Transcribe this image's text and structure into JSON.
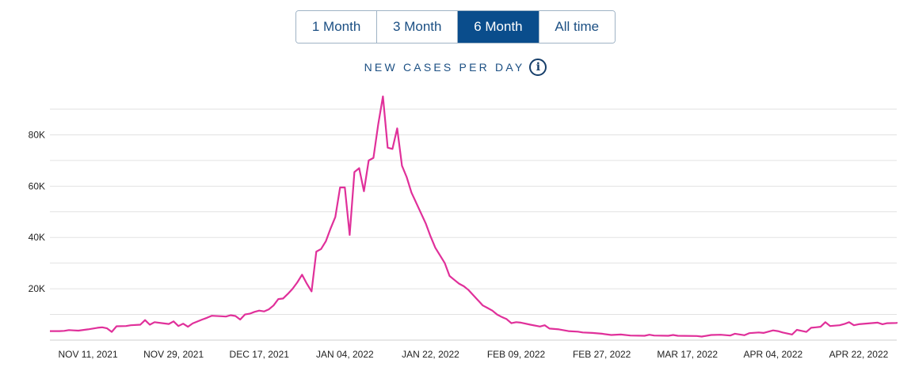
{
  "range_selector": {
    "buttons": [
      {
        "label": "1 Month",
        "active": false
      },
      {
        "label": "3 Month",
        "active": false
      },
      {
        "label": "6 Month",
        "active": true
      },
      {
        "label": "All time",
        "active": false
      }
    ]
  },
  "icons": {
    "info": "info-icon"
  },
  "colors": {
    "line": "#e0309a",
    "accent": "#0a4d8c",
    "text": "#1b4f83",
    "grid": "#e2e2e2"
  },
  "chart_data": {
    "type": "line",
    "title": "NEW CASES PER DAY",
    "xlabel": "",
    "ylabel": "",
    "x_ticks": [
      {
        "date": "2021-11-11",
        "label": "NOV 11, 2021"
      },
      {
        "date": "2021-11-29",
        "label": "NOV 29, 2021"
      },
      {
        "date": "2021-12-17",
        "label": "DEC 17, 2021"
      },
      {
        "date": "2022-01-04",
        "label": "JAN 04, 2022"
      },
      {
        "date": "2022-01-22",
        "label": "JAN 22, 2022"
      },
      {
        "date": "2022-02-09",
        "label": "FEB 09, 2022"
      },
      {
        "date": "2022-02-27",
        "label": "FEB 27, 2022"
      },
      {
        "date": "2022-03-17",
        "label": "MAR 17, 2022"
      },
      {
        "date": "2022-04-04",
        "label": "APR 04, 2022"
      },
      {
        "date": "2022-04-22",
        "label": "APR 22, 2022"
      }
    ],
    "y_ticks": [
      {
        "value": 20000,
        "label": "20K"
      },
      {
        "value": 40000,
        "label": "40K"
      },
      {
        "value": 60000,
        "label": "60K"
      },
      {
        "value": 80000,
        "label": "80K"
      }
    ],
    "xlim": [
      "2021-11-03",
      "2022-04-30"
    ],
    "ylim": [
      0,
      90000
    ],
    "grid": true,
    "legend": "none",
    "series": [
      {
        "points": [
          [
            "2021-11-03",
            3500
          ],
          [
            "2021-11-05",
            3500
          ],
          [
            "2021-11-06",
            3600
          ],
          [
            "2021-11-07",
            3900
          ],
          [
            "2021-11-08",
            3800
          ],
          [
            "2021-11-09",
            3700
          ],
          [
            "2021-11-11",
            4200
          ],
          [
            "2021-11-13",
            4800
          ],
          [
            "2021-11-14",
            5000
          ],
          [
            "2021-11-15",
            4600
          ],
          [
            "2021-11-16",
            3200
          ],
          [
            "2021-11-17",
            5400
          ],
          [
            "2021-11-19",
            5500
          ],
          [
            "2021-11-20",
            5800
          ],
          [
            "2021-11-22",
            6000
          ],
          [
            "2021-11-23",
            7800
          ],
          [
            "2021-11-24",
            6000
          ],
          [
            "2021-11-25",
            7000
          ],
          [
            "2021-11-27",
            6500
          ],
          [
            "2021-11-28",
            6300
          ],
          [
            "2021-11-29",
            7300
          ],
          [
            "2021-11-30",
            5500
          ],
          [
            "2021-12-01",
            6400
          ],
          [
            "2021-12-02",
            5200
          ],
          [
            "2021-12-03",
            6500
          ],
          [
            "2021-12-05",
            8000
          ],
          [
            "2021-12-06",
            8700
          ],
          [
            "2021-12-07",
            9500
          ],
          [
            "2021-12-09",
            9300
          ],
          [
            "2021-12-10",
            9200
          ],
          [
            "2021-12-11",
            9700
          ],
          [
            "2021-12-12",
            9400
          ],
          [
            "2021-12-13",
            8000
          ],
          [
            "2021-12-14",
            10000
          ],
          [
            "2021-12-15",
            10300
          ],
          [
            "2021-12-16",
            11000
          ],
          [
            "2021-12-17",
            11500
          ],
          [
            "2021-12-18",
            11200
          ],
          [
            "2021-12-19",
            12000
          ],
          [
            "2021-12-20",
            13500
          ],
          [
            "2021-12-21",
            16000
          ],
          [
            "2021-12-22",
            16200
          ],
          [
            "2021-12-23",
            18000
          ],
          [
            "2021-12-24",
            20000
          ],
          [
            "2021-12-25",
            22500
          ],
          [
            "2021-12-26",
            25500
          ],
          [
            "2021-12-27",
            22000
          ],
          [
            "2021-12-28",
            19000
          ],
          [
            "2021-12-29",
            34500
          ],
          [
            "2021-12-30",
            35500
          ],
          [
            "2021-12-31",
            38500
          ],
          [
            "2022-01-01",
            43500
          ],
          [
            "2022-01-02",
            48000
          ],
          [
            "2022-01-03",
            59500
          ],
          [
            "2022-01-04",
            59500
          ],
          [
            "2022-01-05",
            41000
          ],
          [
            "2022-01-06",
            65500
          ],
          [
            "2022-01-07",
            67000
          ],
          [
            "2022-01-08",
            58000
          ],
          [
            "2022-01-09",
            70000
          ],
          [
            "2022-01-10",
            71000
          ],
          [
            "2022-01-11",
            84000
          ],
          [
            "2022-01-12",
            95000
          ],
          [
            "2022-01-13",
            75000
          ],
          [
            "2022-01-14",
            74500
          ],
          [
            "2022-01-15",
            82500
          ],
          [
            "2022-01-16",
            68000
          ],
          [
            "2022-01-17",
            63500
          ],
          [
            "2022-01-18",
            57500
          ],
          [
            "2022-01-19",
            53500
          ],
          [
            "2022-01-20",
            49500
          ],
          [
            "2022-01-21",
            45500
          ],
          [
            "2022-01-22",
            40500
          ],
          [
            "2022-01-23",
            36000
          ],
          [
            "2022-01-24",
            33000
          ],
          [
            "2022-01-25",
            30000
          ],
          [
            "2022-01-26",
            25000
          ],
          [
            "2022-01-27",
            23500
          ],
          [
            "2022-01-28",
            22000
          ],
          [
            "2022-01-29",
            21000
          ],
          [
            "2022-01-30",
            19500
          ],
          [
            "2022-01-31",
            17500
          ],
          [
            "2022-02-01",
            15500
          ],
          [
            "2022-02-02",
            13500
          ],
          [
            "2022-02-03",
            12500
          ],
          [
            "2022-02-04",
            11500
          ],
          [
            "2022-02-05",
            10000
          ],
          [
            "2022-02-06",
            9000
          ],
          [
            "2022-02-07",
            8200
          ],
          [
            "2022-02-08",
            6600
          ],
          [
            "2022-02-09",
            7000
          ],
          [
            "2022-02-10",
            6800
          ],
          [
            "2022-02-12",
            6000
          ],
          [
            "2022-02-14",
            5300
          ],
          [
            "2022-02-15",
            5800
          ],
          [
            "2022-02-16",
            4500
          ],
          [
            "2022-02-18",
            4200
          ],
          [
            "2022-02-20",
            3500
          ],
          [
            "2022-02-22",
            3300
          ],
          [
            "2022-02-23",
            3000
          ],
          [
            "2022-02-25",
            2800
          ],
          [
            "2022-02-27",
            2500
          ],
          [
            "2022-03-01",
            2000
          ],
          [
            "2022-03-03",
            2200
          ],
          [
            "2022-03-05",
            1800
          ],
          [
            "2022-03-08",
            1700
          ],
          [
            "2022-03-09",
            2100
          ],
          [
            "2022-03-10",
            1800
          ],
          [
            "2022-03-13",
            1700
          ],
          [
            "2022-03-14",
            2000
          ],
          [
            "2022-03-15",
            1700
          ],
          [
            "2022-03-19",
            1600
          ],
          [
            "2022-03-20",
            1400
          ],
          [
            "2022-03-22",
            2000
          ],
          [
            "2022-03-24",
            2100
          ],
          [
            "2022-03-26",
            1800
          ],
          [
            "2022-03-27",
            2500
          ],
          [
            "2022-03-29",
            1900
          ],
          [
            "2022-03-30",
            2700
          ],
          [
            "2022-04-01",
            3000
          ],
          [
            "2022-04-02",
            2800
          ],
          [
            "2022-04-04",
            3800
          ],
          [
            "2022-04-05",
            3500
          ],
          [
            "2022-04-06",
            3000
          ],
          [
            "2022-04-08",
            2200
          ],
          [
            "2022-04-09",
            4000
          ],
          [
            "2022-04-10",
            3600
          ],
          [
            "2022-04-11",
            3200
          ],
          [
            "2022-04-12",
            4800
          ],
          [
            "2022-04-13",
            5000
          ],
          [
            "2022-04-14",
            5200
          ],
          [
            "2022-04-15",
            7000
          ],
          [
            "2022-04-16",
            5500
          ],
          [
            "2022-04-18",
            5800
          ],
          [
            "2022-04-19",
            6300
          ],
          [
            "2022-04-20",
            7000
          ],
          [
            "2022-04-21",
            5800
          ],
          [
            "2022-04-22",
            6200
          ],
          [
            "2022-04-24",
            6500
          ],
          [
            "2022-04-26",
            6800
          ],
          [
            "2022-04-27",
            6200
          ],
          [
            "2022-04-28",
            6600
          ],
          [
            "2022-04-30",
            6700
          ],
          [
            "2022-05-01",
            7000
          ]
        ]
      }
    ]
  }
}
